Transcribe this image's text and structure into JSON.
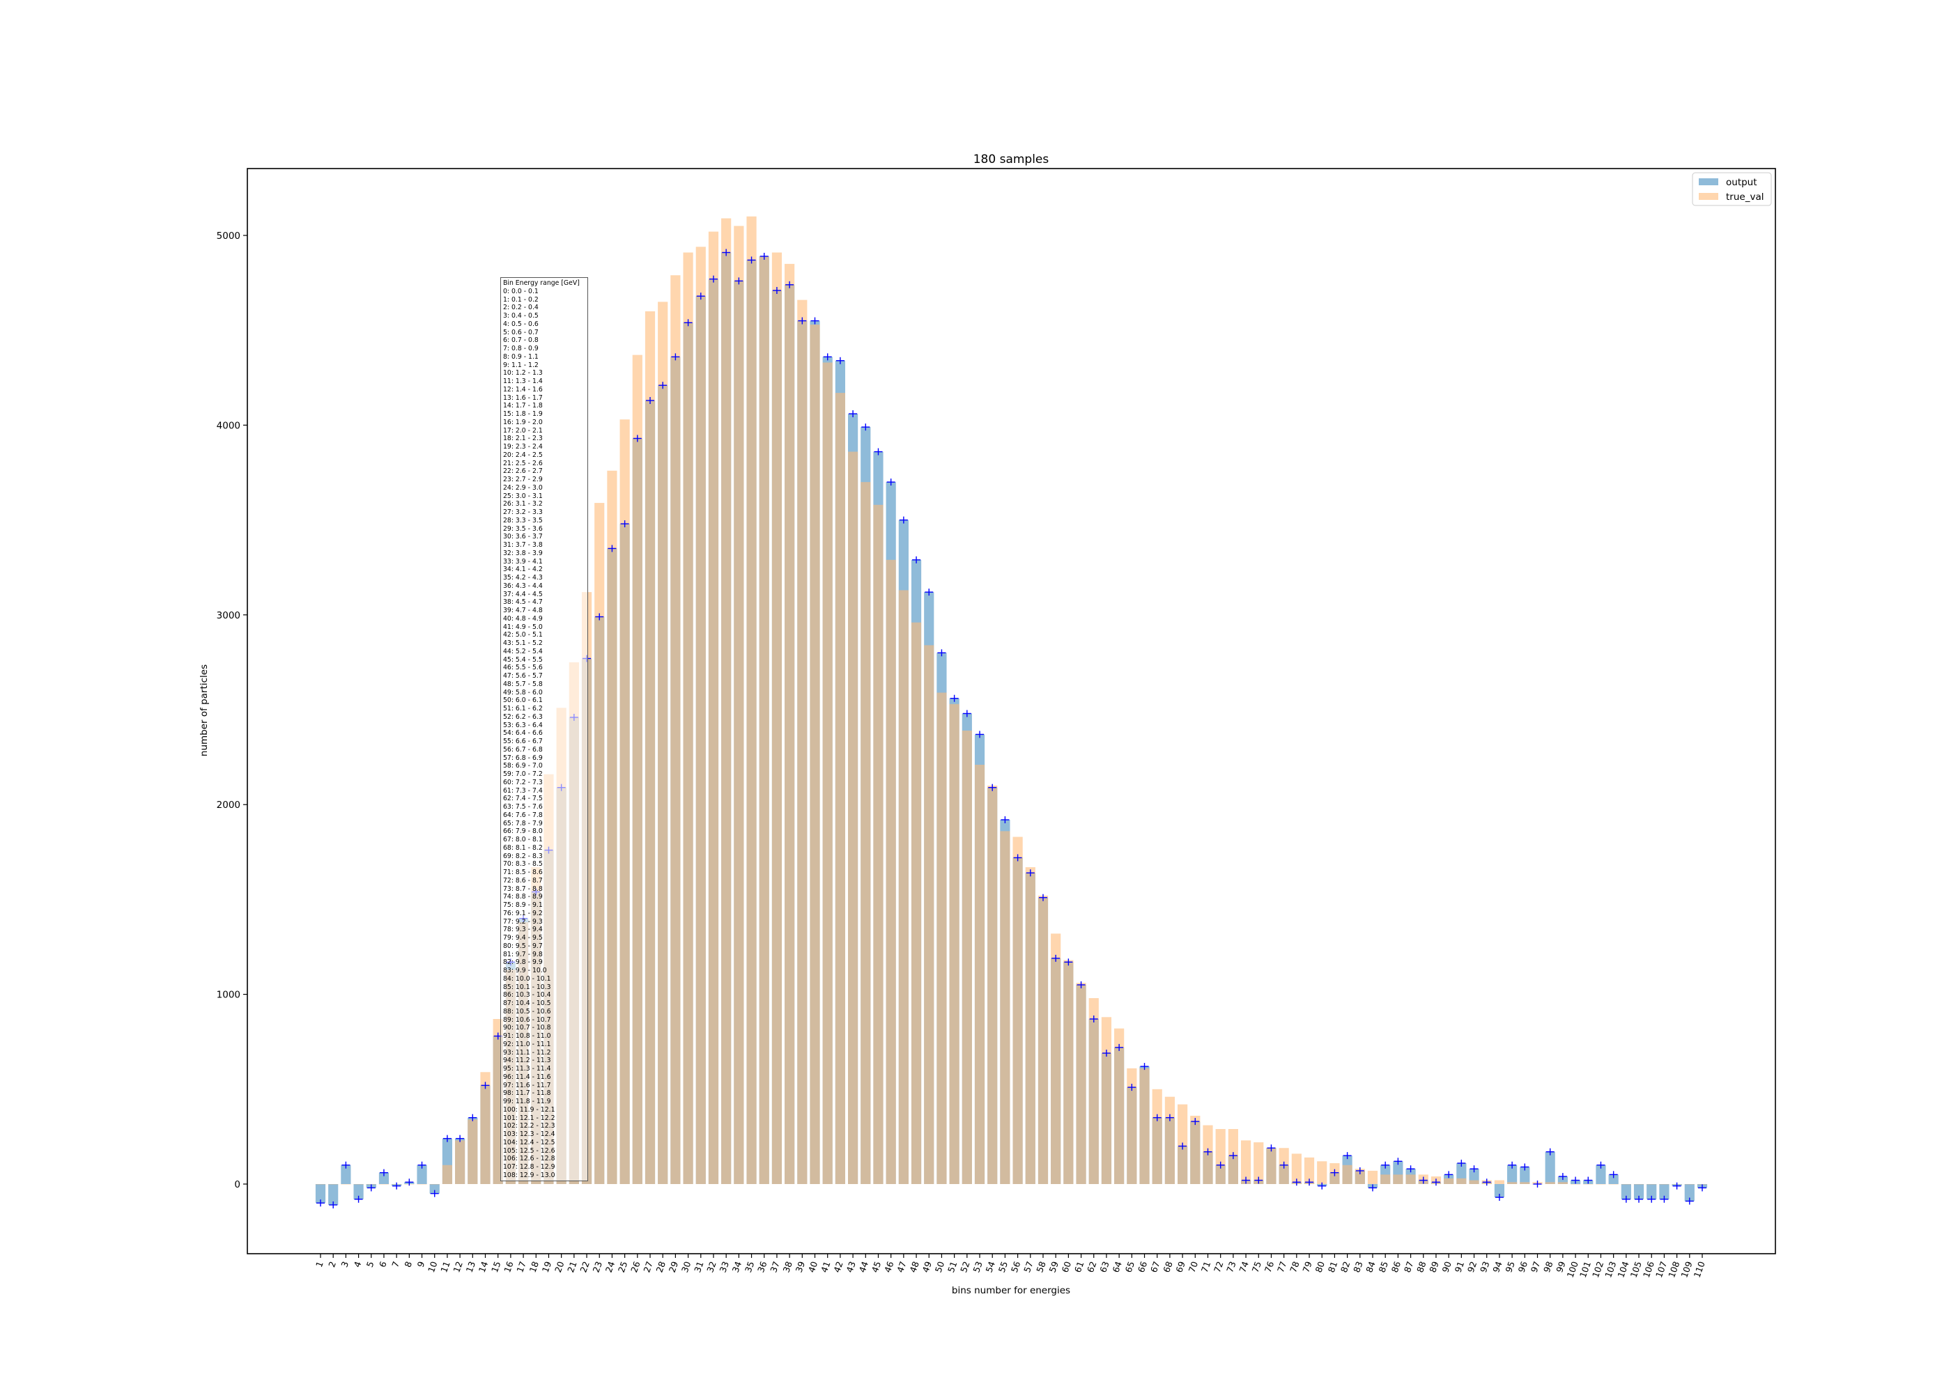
{
  "chart_data": {
    "type": "bar",
    "title": "180 samples",
    "xlabel": "bins number for energies",
    "ylabel": "number of particles",
    "ylim": [
      -370,
      5300
    ],
    "yticks": [
      0,
      1000,
      2000,
      3000,
      4000,
      5000
    ],
    "legend": {
      "placement": "top-right",
      "entries": [
        "output",
        "true_val"
      ]
    },
    "grid": false,
    "colors": {
      "output": "#1f77b4",
      "true_val": "#ffbb78",
      "error": "#0000ff"
    },
    "categories": [
      "1",
      "2",
      "3",
      "4",
      "5",
      "6",
      "7",
      "8",
      "9",
      "10",
      "11",
      "12",
      "13",
      "14",
      "15",
      "16",
      "17",
      "18",
      "19",
      "20",
      "21",
      "22",
      "23",
      "24",
      "25",
      "26",
      "27",
      "28",
      "29",
      "30",
      "31",
      "32",
      "33",
      "34",
      "35",
      "36",
      "37",
      "38",
      "39",
      "40",
      "41",
      "42",
      "43",
      "44",
      "45",
      "46",
      "47",
      "48",
      "49",
      "50",
      "51",
      "52",
      "53",
      "54",
      "55",
      "56",
      "57",
      "58",
      "59",
      "60",
      "61",
      "62",
      "63",
      "64",
      "65",
      "66",
      "67",
      "68",
      "69",
      "70",
      "71",
      "72",
      "73",
      "74",
      "75",
      "76",
      "77",
      "78",
      "79",
      "80",
      "81",
      "82",
      "83",
      "84",
      "85",
      "86",
      "87",
      "88",
      "89",
      "90",
      "91",
      "92",
      "93",
      "94",
      "95",
      "96",
      "97",
      "98",
      "99",
      "100",
      "101",
      "102",
      "103",
      "104",
      "105",
      "106",
      "107",
      "108",
      "109",
      "110"
    ],
    "series": [
      {
        "name": "output",
        "values": [
          -100,
          -110,
          100,
          -80,
          -20,
          60,
          -10,
          10,
          100,
          -50,
          240,
          240,
          350,
          520,
          780,
          1170,
          1400,
          1540,
          1760,
          2090,
          2460,
          2770,
          2990,
          3350,
          3480,
          3930,
          4130,
          4210,
          4360,
          4540,
          4680,
          4770,
          4910,
          4760,
          4870,
          4890,
          4710,
          4740,
          4550,
          4550,
          4360,
          4340,
          4060,
          3990,
          3860,
          3700,
          3500,
          3290,
          3120,
          2800,
          2560,
          2480,
          2370,
          2090,
          1920,
          1720,
          1640,
          1510,
          1190,
          1170,
          1050,
          870,
          690,
          720,
          510,
          620,
          350,
          350,
          200,
          330,
          170,
          100,
          150,
          20,
          20,
          190,
          100,
          10,
          10,
          -10,
          60,
          150,
          70,
          -20,
          100,
          120,
          80,
          20,
          10,
          50,
          110,
          80,
          10,
          -70,
          100,
          90,
          0,
          170,
          40,
          20,
          20,
          100,
          50,
          -80,
          -80,
          -80,
          -80,
          -10,
          -90,
          -20
        ]
      },
      {
        "name": "true_val",
        "values": [
          0,
          0,
          0,
          0,
          0,
          0,
          0,
          0,
          0,
          0,
          100,
          230,
          340,
          590,
          870,
          1130,
          1380,
          1670,
          2160,
          2510,
          2750,
          3120,
          3590,
          3760,
          4030,
          4370,
          4600,
          4650,
          4790,
          4910,
          4940,
          5020,
          5090,
          5050,
          5100,
          4890,
          4910,
          4850,
          4660,
          4530,
          4330,
          4170,
          3860,
          3700,
          3580,
          3290,
          3130,
          2960,
          2840,
          2590,
          2530,
          2390,
          2210,
          2100,
          1860,
          1830,
          1670,
          1520,
          1320,
          1180,
          1060,
          980,
          880,
          820,
          610,
          610,
          500,
          460,
          420,
          360,
          310,
          290,
          290,
          230,
          220,
          190,
          190,
          160,
          140,
          120,
          110,
          100,
          80,
          70,
          50,
          50,
          50,
          50,
          40,
          30,
          30,
          20,
          20,
          20,
          10,
          10,
          10,
          10,
          10,
          0,
          0,
          0,
          0,
          0,
          0,
          0,
          0,
          0,
          0,
          0
        ]
      }
    ],
    "annotation": {
      "title": "Bin Energy range [GeV]",
      "lines": [
        "0: 0.0 - 0.1",
        "1: 0.1 - 0.2",
        "2: 0.2 - 0.4",
        "3: 0.4 - 0.5",
        "4: 0.5 - 0.6",
        "5: 0.6 - 0.7",
        "6: 0.7 - 0.8",
        "7: 0.8 - 0.9",
        "8: 0.9 - 1.1",
        "9: 1.1 - 1.2",
        "10: 1.2 - 1.3",
        "11: 1.3 - 1.4",
        "12: 1.4 - 1.6",
        "13: 1.6 - 1.7",
        "14: 1.7 - 1.8",
        "15: 1.8 - 1.9",
        "16: 1.9 - 2.0",
        "17: 2.0 - 2.1",
        "18: 2.1 - 2.3",
        "19: 2.3 - 2.4",
        "20: 2.4 - 2.5",
        "21: 2.5 - 2.6",
        "22: 2.6 - 2.7",
        "23: 2.7 - 2.9",
        "24: 2.9 - 3.0",
        "25: 3.0 - 3.1",
        "26: 3.1 - 3.2",
        "27: 3.2 - 3.3",
        "28: 3.3 - 3.5",
        "29: 3.5 - 3.6",
        "30: 3.6 - 3.7",
        "31: 3.7 - 3.8",
        "32: 3.8 - 3.9",
        "33: 3.9 - 4.1",
        "34: 4.1 - 4.2",
        "35: 4.2 - 4.3",
        "36: 4.3 - 4.4",
        "37: 4.4 - 4.5",
        "38: 4.5 - 4.7",
        "39: 4.7 - 4.8",
        "40: 4.8 - 4.9",
        "41: 4.9 - 5.0",
        "42: 5.0 - 5.1",
        "43: 5.1 - 5.2",
        "44: 5.2 - 5.4",
        "45: 5.4 - 5.5",
        "46: 5.5 - 5.6",
        "47: 5.6 - 5.7",
        "48: 5.7 - 5.8",
        "49: 5.8 - 6.0",
        "50: 6.0 - 6.1",
        "51: 6.1 - 6.2",
        "52: 6.2 - 6.3",
        "53: 6.3 - 6.4",
        "54: 6.4 - 6.6",
        "55: 6.6 - 6.7",
        "56: 6.7 - 6.8",
        "57: 6.8 - 6.9",
        "58: 6.9 - 7.0",
        "59: 7.0 - 7.2",
        "60: 7.2 - 7.3",
        "61: 7.3 - 7.4",
        "62: 7.4 - 7.5",
        "63: 7.5 - 7.6",
        "64: 7.6 - 7.8",
        "65: 7.8 - 7.9",
        "66: 7.9 - 8.0",
        "67: 8.0 - 8.1",
        "68: 8.1 - 8.2",
        "69: 8.2 - 8.3",
        "70: 8.3 - 8.5",
        "71: 8.5 - 8.6",
        "72: 8.6 - 8.7",
        "73: 8.7 - 8.8",
        "74: 8.8 - 8.9",
        "75: 8.9 - 9.1",
        "76: 9.1 - 9.2",
        "77: 9.2 - 9.3",
        "78: 9.3 - 9.4",
        "79: 9.4 - 9.5",
        "80: 9.5 - 9.7",
        "81: 9.7 - 9.8",
        "82: 9.8 - 9.9",
        "83: 9.9 - 10.0",
        "84: 10.0 - 10.1",
        "85: 10.1 - 10.3",
        "86: 10.3 - 10.4",
        "87: 10.4 - 10.5",
        "88: 10.5 - 10.6",
        "89: 10.6 - 10.7",
        "90: 10.7 - 10.8",
        "91: 10.8 - 11.0",
        "92: 11.0 - 11.1",
        "93: 11.1 - 11.2",
        "94: 11.2 - 11.3",
        "95: 11.3 - 11.4",
        "96: 11.4 - 11.6",
        "97: 11.6 - 11.7",
        "98: 11.7 - 11.8",
        "99: 11.8 - 11.9",
        "100: 11.9 - 12.1",
        "101: 12.1 - 12.2",
        "102: 12.2 - 12.3",
        "103: 12.3 - 12.4",
        "104: 12.4 - 12.5",
        "105: 12.5 - 12.6",
        "106: 12.6 - 12.8",
        "107: 12.8 - 12.9",
        "108: 12.9 - 13.0"
      ]
    }
  }
}
